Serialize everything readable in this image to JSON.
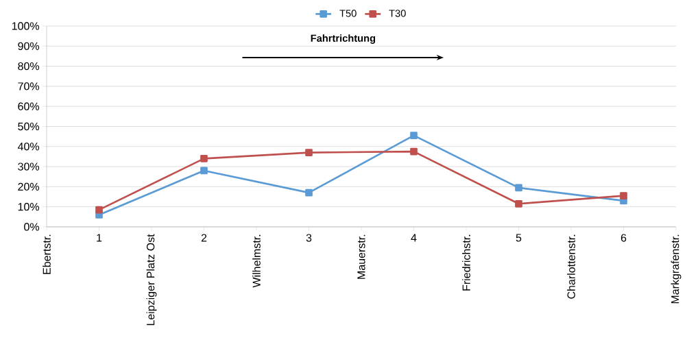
{
  "chart_data": {
    "type": "line",
    "categories": [
      "Ebertstr.",
      "1",
      "Leipziger Platz Ost",
      "2",
      "Wilhelmstr.",
      "3",
      "Mauerstr.",
      "4",
      "Friedrichstr.",
      "5",
      "Charlottenstr.",
      "6",
      "Markgrafenstr."
    ],
    "series": [
      {
        "name": "T50",
        "color": "#5b9bd5",
        "values": [
          null,
          6,
          null,
          28,
          null,
          17,
          null,
          45.5,
          null,
          19.5,
          null,
          13,
          null
        ]
      },
      {
        "name": "T30",
        "color": "#c0504d",
        "values": [
          null,
          8.5,
          null,
          34,
          null,
          37,
          null,
          37.5,
          null,
          11.5,
          null,
          15.5,
          null
        ]
      }
    ],
    "ylim": [
      0,
      100
    ],
    "yticks": [
      {
        "value": 0,
        "label": "0%"
      },
      {
        "value": 10,
        "label": "10%"
      },
      {
        "value": 20,
        "label": "20%"
      },
      {
        "value": 30,
        "label": "30%"
      },
      {
        "value": 40,
        "label": "40%"
      },
      {
        "value": 50,
        "label": "50%"
      },
      {
        "value": 60,
        "label": "60%"
      },
      {
        "value": 70,
        "label": "70%"
      },
      {
        "value": 80,
        "label": "80%"
      },
      {
        "value": 90,
        "label": "90%"
      },
      {
        "value": 100,
        "label": "100%"
      }
    ],
    "annotations": [
      "Fahrtrichtung"
    ],
    "grid": "y",
    "legend": "top",
    "marker": "square",
    "line_style": "solid"
  }
}
